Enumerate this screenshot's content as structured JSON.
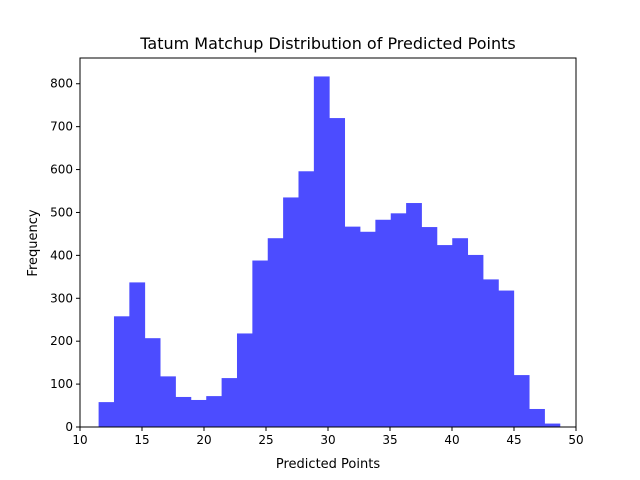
{
  "chart_data": {
    "type": "bar",
    "subtype": "histogram",
    "title": "Tatum Matchup Distribution of Predicted Points",
    "xlabel": "Predicted Points",
    "ylabel": "Frequency",
    "xlim": [
      10,
      50
    ],
    "ylim": [
      0,
      860
    ],
    "xticks": [
      10,
      15,
      20,
      25,
      30,
      35,
      40,
      45,
      50
    ],
    "yticks": [
      0,
      100,
      200,
      300,
      400,
      500,
      600,
      700,
      800
    ],
    "grid": false,
    "legend": "none",
    "bar_color": "#4c4cff",
    "bin_edges": [
      11.5,
      12.74,
      13.98,
      15.22,
      16.46,
      17.7,
      18.94,
      20.18,
      21.42,
      22.66,
      23.9,
      25.14,
      26.38,
      27.62,
      28.86,
      30.1,
      31.34,
      32.58,
      33.82,
      35.06,
      36.3,
      37.54,
      38.78,
      40.02,
      41.26,
      42.5,
      43.74,
      44.98,
      46.22,
      47.46,
      48.7
    ],
    "values": [
      58,
      258,
      337,
      207,
      118,
      70,
      63,
      72,
      114,
      218,
      388,
      440,
      535,
      596,
      817,
      720,
      467,
      455,
      483,
      498,
      522,
      466,
      424,
      440,
      401,
      344,
      318,
      121,
      42,
      8
    ]
  }
}
